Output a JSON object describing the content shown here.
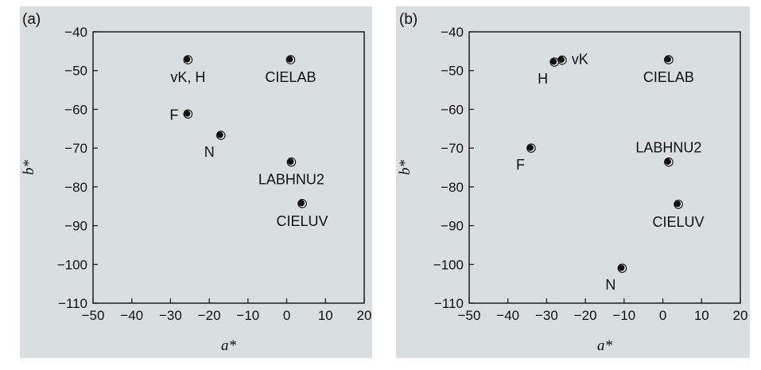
{
  "chart_data": [
    {
      "type": "scatter",
      "panel_label": "(a)",
      "xlabel": "a*",
      "ylabel": "b*",
      "xlim": [
        -50,
        20
      ],
      "ylim": [
        -110,
        -40
      ],
      "xticks": [
        -50,
        -40,
        -30,
        -20,
        -10,
        0,
        10,
        20
      ],
      "yticks": [
        -40,
        -50,
        -60,
        -70,
        -80,
        -90,
        -100,
        -110
      ],
      "xtick_labels": [
        "−50",
        "−40",
        "−30",
        "−20",
        "−10",
        "0",
        "10",
        "20"
      ],
      "ytick_labels": [
        "−40",
        "−50",
        "−60",
        "−70",
        "−80",
        "−90",
        "−100",
        "−110"
      ],
      "points": [
        {
          "label": "vK, H",
          "x": -25.5,
          "y": -47.2,
          "label_pos": "below"
        },
        {
          "label": "CIELAB",
          "x": 1,
          "y": -47.2,
          "label_pos": "below"
        },
        {
          "label": "F",
          "x": -25.5,
          "y": -61.2,
          "label_pos": "left"
        },
        {
          "label": "N",
          "x": -17,
          "y": -66.7,
          "label_pos": "below-left"
        },
        {
          "label": "LABHNU2",
          "x": 1.2,
          "y": -73.6,
          "label_pos": "below"
        },
        {
          "label": "CIELUV",
          "x": 4,
          "y": -84.3,
          "label_pos": "below"
        }
      ]
    },
    {
      "type": "scatter",
      "panel_label": "(b)",
      "xlabel": "a*",
      "ylabel": "b*",
      "xlim": [
        -50,
        20
      ],
      "ylim": [
        -110,
        -40
      ],
      "xticks": [
        -50,
        -40,
        -30,
        -20,
        -10,
        0,
        10,
        20
      ],
      "yticks": [
        -40,
        -50,
        -60,
        -70,
        -80,
        -90,
        -100,
        -110
      ],
      "xtick_labels": [
        "−50",
        "−40",
        "−30",
        "−20",
        "−10",
        "0",
        "10",
        "20"
      ],
      "ytick_labels": [
        "−40",
        "−50",
        "−60",
        "−70",
        "−80",
        "−90",
        "−100",
        "−110"
      ],
      "points": [
        {
          "label": "H",
          "x": -28,
          "y": -47.8,
          "label_pos": "below-left"
        },
        {
          "label": "vK",
          "x": -26,
          "y": -47.3,
          "label_pos": "right"
        },
        {
          "label": "CIELAB",
          "x": 1.5,
          "y": -47.2,
          "label_pos": "below"
        },
        {
          "label": "F",
          "x": -34,
          "y": -70,
          "label_pos": "below-left"
        },
        {
          "label": "LABHNU2",
          "x": 1.5,
          "y": -73.6,
          "label_pos": "above"
        },
        {
          "label": "CIELUV",
          "x": 4,
          "y": -84.5,
          "label_pos": "below"
        },
        {
          "label": "N",
          "x": -10.5,
          "y": -101,
          "label_pos": "below-left"
        }
      ]
    }
  ]
}
